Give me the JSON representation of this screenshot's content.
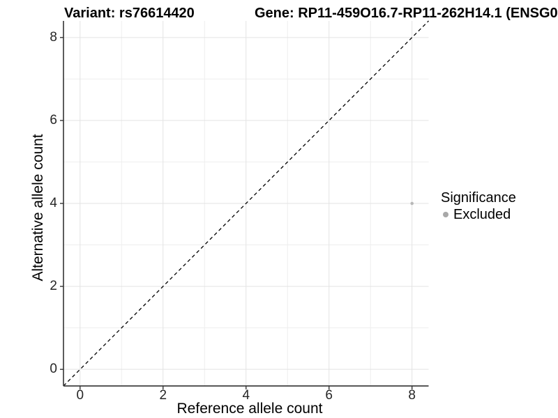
{
  "header": {
    "title_left": "Variant: rs76614420",
    "title_right": "Gene: RP11-459O16.7-RP11-262H14.1 (ENSG0"
  },
  "legend": {
    "title": "Significance",
    "items": [
      {
        "label": "Excluded",
        "color": "#a8a8a8"
      }
    ]
  },
  "chart_data": {
    "type": "scatter",
    "xlabel": "Reference allele count",
    "ylabel": "Alternative allele count",
    "x_ticks": [
      0,
      2,
      4,
      6,
      8
    ],
    "y_ticks": [
      0,
      2,
      4,
      6,
      8
    ],
    "xlim": [
      -0.4,
      8.4
    ],
    "ylim": [
      -0.4,
      8.4
    ],
    "grid": {
      "major": [
        0,
        2,
        4,
        6,
        8
      ],
      "minor": [
        1,
        3,
        5,
        7
      ],
      "major_color": "#e3e3e3",
      "minor_color": "#eeeeee"
    },
    "reference_line": {
      "kind": "identity",
      "style": "dashed",
      "color": "#000000"
    },
    "series": [
      {
        "name": "Excluded",
        "color": "#b8b8b8",
        "points": [
          {
            "x": 8,
            "y": 4
          }
        ]
      }
    ],
    "legend_position": "right",
    "legend_title": "Significance"
  },
  "colors": {
    "axis_line": "#404040",
    "tick_mark": "#333333",
    "background": "#ffffff"
  }
}
